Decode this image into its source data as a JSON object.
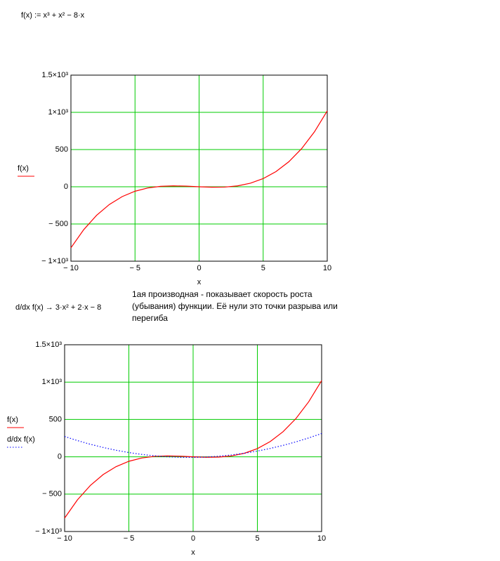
{
  "worksheet": {
    "definition": "f(x) := x³ + x² − 8·x",
    "derivative": "d/dx f(x) → 3·x² + 2·x − 8",
    "note": [
      "1ая производная - показывает скорость роста",
      "(убывания) функции. Её нули это точки разрыва или",
      "перегиба"
    ]
  },
  "chart_data": [
    {
      "type": "line",
      "x_label": "x",
      "x": [
        -10,
        -9,
        -8,
        -7,
        -6,
        -5,
        -4,
        -3,
        -2,
        -1,
        0,
        1,
        2,
        3,
        4,
        5,
        6,
        7,
        8,
        9,
        10
      ],
      "series": [
        {
          "name": "f(x)",
          "color": "#ff0000",
          "style": "solid",
          "values": [
            -820,
            -576,
            -384,
            -238,
            -132,
            -60,
            -16,
            6,
            12,
            8,
            0,
            -6,
            -4,
            12,
            48,
            110,
            204,
            336,
            512,
            738,
            1020
          ]
        }
      ],
      "xlim": [
        -10,
        10
      ],
      "xticks": [
        {
          "value": -10,
          "label": "− 10"
        },
        {
          "value": -5,
          "label": "− 5"
        },
        0,
        5,
        10
      ],
      "ylim": [
        -1000,
        1500
      ],
      "yticks": [
        {
          "value": -1000,
          "label": "− 1×10³"
        },
        {
          "value": -500,
          "label": "− 500"
        },
        0,
        500,
        {
          "value": 1000,
          "label": "1×10³"
        },
        {
          "value": 1500,
          "label": "1.5×10³"
        }
      ],
      "grid": true,
      "grid_color": "#00cc00"
    },
    {
      "type": "line",
      "x_label": "x",
      "x": [
        -10,
        -9,
        -8,
        -7,
        -6,
        -5,
        -4,
        -3,
        -2,
        -1,
        0,
        1,
        2,
        3,
        4,
        5,
        6,
        7,
        8,
        9,
        10
      ],
      "series": [
        {
          "name": "f(x)",
          "color": "#ff0000",
          "style": "solid",
          "values": [
            -820,
            -576,
            -384,
            -238,
            -132,
            -60,
            -16,
            6,
            12,
            8,
            0,
            -6,
            -4,
            12,
            48,
            110,
            204,
            336,
            512,
            738,
            1020
          ]
        },
        {
          "name": "d/dx f(x)",
          "color": "#0000ff",
          "style": "dotted",
          "values": [
            272,
            217,
            168,
            125,
            88,
            57,
            32,
            13,
            0,
            -7,
            -8,
            -3,
            8,
            25,
            48,
            77,
            112,
            153,
            200,
            253,
            312
          ]
        }
      ],
      "xlim": [
        -10,
        10
      ],
      "xticks": [
        {
          "value": -10,
          "label": "− 10"
        },
        {
          "value": -5,
          "label": "− 5"
        },
        0,
        5,
        10
      ],
      "ylim": [
        -1000,
        1500
      ],
      "yticks": [
        {
          "value": -1000,
          "label": "− 1×10³"
        },
        {
          "value": -500,
          "label": "− 500"
        },
        0,
        500,
        {
          "value": 1000,
          "label": "1×10³"
        },
        {
          "value": 1500,
          "label": "1.5×10³"
        }
      ],
      "grid": true,
      "grid_color": "#00cc00"
    }
  ]
}
